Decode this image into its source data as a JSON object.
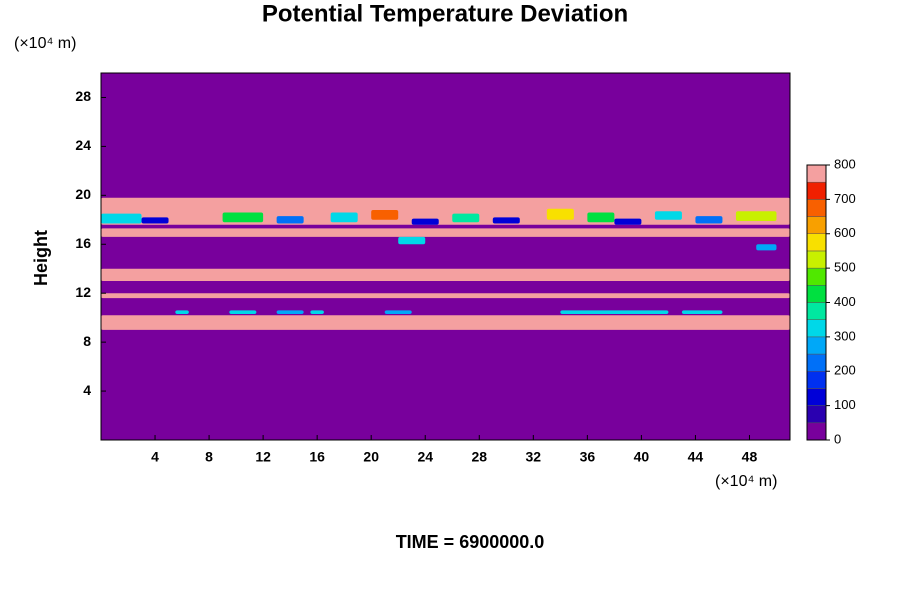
{
  "chart_data": {
    "type": "contour",
    "title": "Potential Temperature Deviation",
    "y_label": "Height",
    "x_unit": "(×10⁴ m)",
    "y_unit": "(×10⁴ m)",
    "footer": "TIME = 6900000.0",
    "xlim": [
      0,
      51
    ],
    "ylim": [
      0,
      30
    ],
    "xticks": [
      4,
      8,
      12,
      16,
      20,
      24,
      28,
      32,
      36,
      40,
      44,
      48
    ],
    "yticks": [
      4,
      8,
      12,
      16,
      20,
      24,
      28
    ],
    "levels": [
      0,
      50,
      100,
      150,
      200,
      250,
      300,
      350,
      400,
      450,
      500,
      550,
      600,
      650,
      700,
      750,
      800
    ],
    "colors": [
      "#78009c",
      "#2a00b0",
      "#0000d8",
      "#0030f0",
      "#0070f8",
      "#00a8f8",
      "#00d8e8",
      "#00e8a0",
      "#00e040",
      "#50e800",
      "#c8f000",
      "#f8e000",
      "#f8a000",
      "#f86000",
      "#f02000",
      "#f4a0a0"
    ],
    "colorbar_ticks": [
      0,
      100,
      200,
      300,
      400,
      500,
      600,
      700,
      800
    ],
    "cells": [
      {
        "x": [
          0,
          51
        ],
        "y": [
          0,
          30
        ],
        "value": 0
      },
      {
        "x": [
          0,
          51
        ],
        "y": [
          17.6,
          19.8
        ],
        "value": 800
      },
      {
        "x": [
          0,
          3
        ],
        "y": [
          17.7,
          18.5
        ],
        "value": 300
      },
      {
        "x": [
          3,
          5
        ],
        "y": [
          17.7,
          18.2
        ],
        "value": 100
      },
      {
        "x": [
          9,
          12
        ],
        "y": [
          17.8,
          18.6
        ],
        "value": 400
      },
      {
        "x": [
          13,
          15
        ],
        "y": [
          17.7,
          18.3
        ],
        "value": 200
      },
      {
        "x": [
          17,
          19
        ],
        "y": [
          17.8,
          18.6
        ],
        "value": 300
      },
      {
        "x": [
          20,
          22
        ],
        "y": [
          18.0,
          18.8
        ],
        "value": 650
      },
      {
        "x": [
          23,
          25
        ],
        "y": [
          17.6,
          18.1
        ],
        "value": 100
      },
      {
        "x": [
          26,
          28
        ],
        "y": [
          17.8,
          18.5
        ],
        "value": 350
      },
      {
        "x": [
          29,
          31
        ],
        "y": [
          17.7,
          18.2
        ],
        "value": 100
      },
      {
        "x": [
          33,
          35
        ],
        "y": [
          18.0,
          18.9
        ],
        "value": 550
      },
      {
        "x": [
          36,
          38
        ],
        "y": [
          17.8,
          18.6
        ],
        "value": 400
      },
      {
        "x": [
          38,
          40
        ],
        "y": [
          17.6,
          18.1
        ],
        "value": 100
      },
      {
        "x": [
          41,
          43
        ],
        "y": [
          18.0,
          18.7
        ],
        "value": 300
      },
      {
        "x": [
          44,
          46
        ],
        "y": [
          17.7,
          18.3
        ],
        "value": 200
      },
      {
        "x": [
          47,
          50
        ],
        "y": [
          17.9,
          18.7
        ],
        "value": 500
      },
      {
        "x": [
          0,
          51
        ],
        "y": [
          16.6,
          17.3
        ],
        "value": 800
      },
      {
        "x": [
          22,
          24
        ],
        "y": [
          16.0,
          16.6
        ],
        "value": 300
      },
      {
        "x": [
          48.5,
          50
        ],
        "y": [
          15.5,
          16.0
        ],
        "value": 250
      },
      {
        "x": [
          0,
          51
        ],
        "y": [
          13.0,
          14.0
        ],
        "value": 800
      },
      {
        "x": [
          0,
          51
        ],
        "y": [
          11.6,
          12.0
        ],
        "value": 800
      },
      {
        "x": [
          0,
          51
        ],
        "y": [
          9.0,
          10.2
        ],
        "value": 800
      },
      {
        "x": [
          5.5,
          6.5
        ],
        "y": [
          10.3,
          10.6
        ],
        "value": 300
      },
      {
        "x": [
          9.5,
          11.5
        ],
        "y": [
          10.3,
          10.6
        ],
        "value": 300
      },
      {
        "x": [
          13,
          15
        ],
        "y": [
          10.3,
          10.6
        ],
        "value": 250
      },
      {
        "x": [
          15.5,
          16.5
        ],
        "y": [
          10.3,
          10.6
        ],
        "value": 300
      },
      {
        "x": [
          21,
          23
        ],
        "y": [
          10.3,
          10.6
        ],
        "value": 250
      },
      {
        "x": [
          34,
          42
        ],
        "y": [
          10.3,
          10.6
        ],
        "value": 300
      },
      {
        "x": [
          43,
          46
        ],
        "y": [
          10.3,
          10.6
        ],
        "value": 300
      }
    ]
  }
}
